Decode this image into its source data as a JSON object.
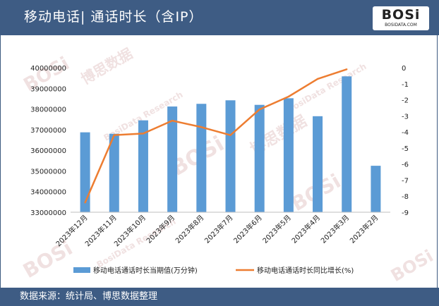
{
  "header": {
    "title": "移动电话| 通话时长（含IP）"
  },
  "logo": {
    "text": "BOSi",
    "sub": "BOSIDATA.COM"
  },
  "footer": {
    "source": "数据来源：统计局、博思数据整理"
  },
  "watermark": {
    "brand": "BOSi",
    "cn": "博思数据",
    "en": "BosiData Research"
  },
  "colors": {
    "header": "#3e5c84",
    "bar": "#5b9bd5",
    "line": "#ed7d31"
  },
  "chart_data": {
    "type": "bar",
    "categories": [
      "2023年12月",
      "2023年11月",
      "2023年10月",
      "2023年9月",
      "2023年8月",
      "2023年7月",
      "2023年6月",
      "2023年5月",
      "2023年4月",
      "2023年3月",
      "2023年2月"
    ],
    "series": [
      {
        "name": "移动电话通话时长当期值(万分钟)",
        "type": "bar",
        "axis": "left",
        "values": [
          36870000,
          36800000,
          37450000,
          38120000,
          38250000,
          38420000,
          38200000,
          38520000,
          37650000,
          39580000,
          35250000
        ]
      },
      {
        "name": "移动电话通话时长同比增长(%)",
        "type": "line",
        "axis": "right",
        "values": [
          -8.4,
          -4.2,
          -4.1,
          -3.3,
          -3.7,
          -4.2,
          -2.6,
          -1.8,
          -0.7,
          -0.1,
          null
        ]
      }
    ],
    "y_left": {
      "min": 33000000,
      "max": 40000000,
      "step": 1000000,
      "ticks": [
        "33000000",
        "34000000",
        "35000000",
        "36000000",
        "37000000",
        "38000000",
        "39000000",
        "40000000"
      ]
    },
    "y_right": {
      "min": -9,
      "max": 0,
      "step": 1,
      "ticks": [
        "-9",
        "-8",
        "-7",
        "-6",
        "-5",
        "-4",
        "-3",
        "-2",
        "-1",
        "0"
      ]
    },
    "legend_position": "bottom",
    "grid": false
  }
}
